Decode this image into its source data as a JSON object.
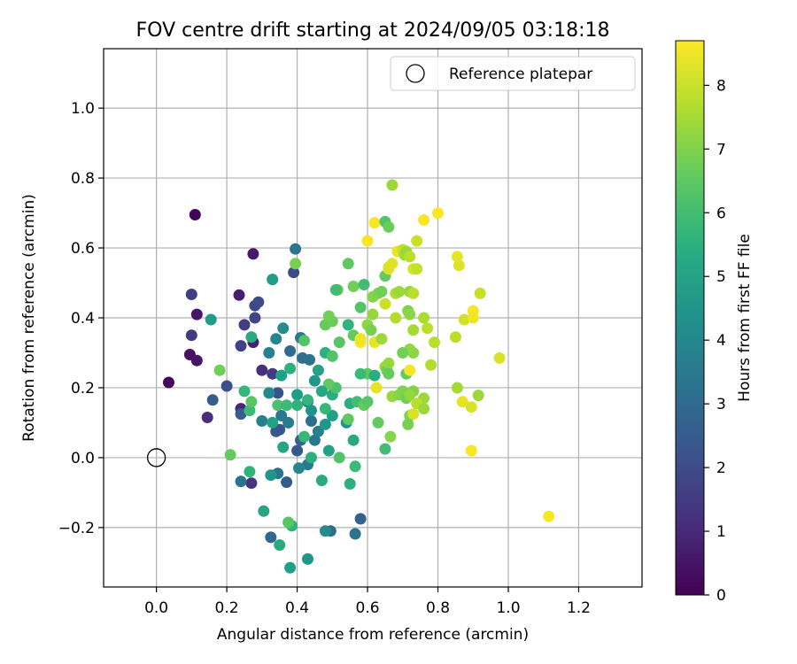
{
  "chart_data": {
    "type": "scatter",
    "title": "FOV centre drift starting at 2024/09/05 03:18:18",
    "xlabel": "Angular distance from reference (arcmin)",
    "ylabel": "Rotation from reference (arcmin)",
    "xlim": [
      -0.15,
      1.38
    ],
    "ylim": [
      -0.37,
      1.17
    ],
    "xticks": [
      0.0,
      0.2,
      0.4,
      0.6,
      0.8,
      1.0,
      1.2
    ],
    "xtick_labels": [
      "0.0",
      "0.2",
      "0.4",
      "0.6",
      "0.8",
      "1.0",
      "1.2"
    ],
    "yticks": [
      -0.2,
      0.0,
      0.2,
      0.4,
      0.6,
      0.8,
      1.0
    ],
    "ytick_labels": [
      "−0.2",
      "0.0",
      "0.2",
      "0.4",
      "0.6",
      "0.8",
      "1.0"
    ],
    "grid": true,
    "legend": {
      "placement": "top-right",
      "entries": [
        "Reference platepar"
      ]
    },
    "reference_point": {
      "x": 0.0,
      "y": 0.0
    },
    "colorbar": {
      "label": "Hours from first FF file",
      "min": 0,
      "max": 8.7,
      "ticks": [
        0,
        1,
        2,
        3,
        4,
        5,
        6,
        7,
        8
      ],
      "tick_labels": [
        "0",
        "1",
        "2",
        "3",
        "4",
        "5",
        "6",
        "7",
        "8"
      ],
      "colormap": "viridis"
    },
    "points": [
      [
        0.11,
        0.695,
        0.1
      ],
      [
        0.035,
        0.215,
        0.2
      ],
      [
        0.095,
        0.295,
        0.4
      ],
      [
        0.115,
        0.41,
        0.5
      ],
      [
        0.115,
        0.278,
        0.5
      ],
      [
        0.1,
        0.35,
        1.5
      ],
      [
        0.1,
        0.467,
        1.6
      ],
      [
        0.145,
        0.115,
        1.2
      ],
      [
        0.275,
        0.583,
        0.6
      ],
      [
        0.235,
        0.465,
        0.7
      ],
      [
        0.275,
        0.33,
        0.8
      ],
      [
        0.24,
        0.14,
        0.9
      ],
      [
        0.25,
        0.38,
        1.6
      ],
      [
        0.24,
        0.32,
        1.7
      ],
      [
        0.28,
        0.4,
        1.8
      ],
      [
        0.28,
        0.435,
        1.9
      ],
      [
        0.29,
        0.445,
        2.0
      ],
      [
        0.2,
        0.205,
        2.1
      ],
      [
        0.16,
        0.165,
        2.5
      ],
      [
        0.24,
        0.125,
        2.6
      ],
      [
        0.27,
        -0.073,
        1.3
      ],
      [
        0.24,
        -0.068,
        3.3
      ],
      [
        0.39,
        0.53,
        2.0
      ],
      [
        0.395,
        0.597,
        3.4
      ],
      [
        0.3,
        0.25,
        1.2
      ],
      [
        0.33,
        0.24,
        1.5
      ],
      [
        0.345,
        0.185,
        2.2
      ],
      [
        0.35,
        0.08,
        2.4
      ],
      [
        0.34,
        0.075,
        2.3
      ],
      [
        0.38,
        0.305,
        3.0
      ],
      [
        0.415,
        0.285,
        3.2
      ],
      [
        0.435,
        0.28,
        3.3
      ],
      [
        0.41,
        0.343,
        3.5
      ],
      [
        0.32,
        0.3,
        3.9
      ],
      [
        0.34,
        0.34,
        4.0
      ],
      [
        0.36,
        0.37,
        4.2
      ],
      [
        0.3,
        0.105,
        3.8
      ],
      [
        0.32,
        0.185,
        4.1
      ],
      [
        0.355,
        0.12,
        3.5
      ],
      [
        0.375,
        0.1,
        3.6
      ],
      [
        0.4,
        0.02,
        2.4
      ],
      [
        0.41,
        0.05,
        2.8
      ],
      [
        0.43,
        0.16,
        3.0
      ],
      [
        0.44,
        0.105,
        3.1
      ],
      [
        0.45,
        0.05,
        3.4
      ],
      [
        0.46,
        0.075,
        3.8
      ],
      [
        0.44,
        0.135,
        4.4
      ],
      [
        0.45,
        0.22,
        4.6
      ],
      [
        0.4,
        0.18,
        4.8
      ],
      [
        0.46,
        0.25,
        5.0
      ],
      [
        0.355,
        0.235,
        4.9
      ],
      [
        0.38,
        0.255,
        5.5
      ],
      [
        0.33,
        0.51,
        4.8
      ],
      [
        0.37,
        -0.07,
        2.5
      ],
      [
        0.345,
        -0.045,
        3.3
      ],
      [
        0.43,
        -0.02,
        3.5
      ],
      [
        0.405,
        -0.03,
        4.0
      ],
      [
        0.325,
        -0.05,
        4.5
      ],
      [
        0.495,
        -0.21,
        3.1
      ],
      [
        0.48,
        -0.21,
        4.2
      ],
      [
        0.325,
        -0.228,
        2.9
      ],
      [
        0.565,
        -0.218,
        3.3
      ],
      [
        0.58,
        -0.175,
        2.7
      ],
      [
        0.38,
        -0.315,
        4.9
      ],
      [
        0.43,
        -0.29,
        4.6
      ],
      [
        0.35,
        -0.25,
        5.3
      ],
      [
        0.385,
        -0.195,
        5.6
      ],
      [
        0.375,
        -0.185,
        6.4
      ],
      [
        0.305,
        -0.153,
        5.1
      ],
      [
        0.265,
        -0.04,
        5.6
      ],
      [
        0.21,
        0.008,
        6.6
      ],
      [
        0.25,
        0.19,
        5.8
      ],
      [
        0.265,
        0.135,
        5.9
      ],
      [
        0.27,
        0.16,
        6.4
      ],
      [
        0.18,
        0.25,
        6.8
      ],
      [
        0.155,
        0.395,
        4.8
      ],
      [
        0.27,
        0.345,
        5.3
      ],
      [
        0.345,
        0.15,
        6.2
      ],
      [
        0.395,
        0.555,
        6.9
      ],
      [
        0.42,
        0.335,
        6.3
      ],
      [
        0.5,
        0.12,
        4.9
      ],
      [
        0.48,
        0.095,
        4.6
      ],
      [
        0.49,
        0.02,
        5.0
      ],
      [
        0.52,
        0.0,
        6.3
      ],
      [
        0.47,
        -0.065,
        5.3
      ],
      [
        0.55,
        -0.075,
        5.5
      ],
      [
        0.565,
        -0.025,
        5.9
      ],
      [
        0.56,
        0.05,
        5.3
      ],
      [
        0.54,
        0.1,
        4.5
      ],
      [
        0.545,
        0.11,
        6.5
      ],
      [
        0.48,
        0.14,
        5.8
      ],
      [
        0.5,
        0.18,
        5.4
      ],
      [
        0.51,
        0.2,
        6.2
      ],
      [
        0.49,
        0.21,
        6.5
      ],
      [
        0.48,
        0.3,
        5.5
      ],
      [
        0.5,
        0.29,
        6.3
      ],
      [
        0.52,
        0.33,
        6.4
      ],
      [
        0.48,
        0.38,
        6.6
      ],
      [
        0.5,
        0.39,
        6.7
      ],
      [
        0.49,
        0.405,
        6.8
      ],
      [
        0.515,
        0.48,
        6.8
      ],
      [
        0.51,
        0.48,
        6.0
      ],
      [
        0.545,
        0.555,
        6.5
      ],
      [
        0.545,
        0.38,
        5.6
      ],
      [
        0.56,
        0.49,
        6.8
      ],
      [
        0.56,
        0.35,
        6.6
      ],
      [
        0.55,
        0.155,
        5.4
      ],
      [
        0.57,
        0.16,
        6.0
      ],
      [
        0.59,
        0.15,
        6.6
      ],
      [
        0.6,
        0.16,
        6.4
      ],
      [
        0.58,
        0.43,
        6.3
      ],
      [
        0.59,
        0.495,
        6.0
      ],
      [
        0.6,
        0.38,
        7.2
      ],
      [
        0.6,
        0.24,
        6.5
      ],
      [
        0.61,
        0.365,
        6.9
      ],
      [
        0.58,
        0.33,
        8.6
      ],
      [
        0.58,
        0.34,
        8.3
      ],
      [
        0.615,
        0.41,
        7.3
      ],
      [
        0.615,
        0.46,
        7.1
      ],
      [
        0.62,
        0.235,
        5.4
      ],
      [
        0.62,
        0.33,
        8.4
      ],
      [
        0.625,
        0.2,
        8.4
      ],
      [
        0.63,
        0.47,
        7.0
      ],
      [
        0.64,
        0.475,
        6.8
      ],
      [
        0.6,
        0.62,
        8.6
      ],
      [
        0.62,
        0.672,
        8.6
      ],
      [
        0.65,
        0.675,
        6.3
      ],
      [
        0.66,
        0.66,
        6.7
      ],
      [
        0.67,
        0.78,
        7.4
      ],
      [
        0.65,
        0.52,
        6.6
      ],
      [
        0.66,
        0.54,
        8.4
      ],
      [
        0.66,
        0.545,
        8.2
      ],
      [
        0.67,
        0.555,
        8.3
      ],
      [
        0.685,
        0.59,
        8.4
      ],
      [
        0.7,
        0.595,
        8.0
      ],
      [
        0.705,
        0.58,
        7.5
      ],
      [
        0.71,
        0.59,
        7.4
      ],
      [
        0.72,
        0.575,
        7.8
      ],
      [
        0.73,
        0.54,
        8.2
      ],
      [
        0.74,
        0.62,
        8.0
      ],
      [
        0.68,
        0.47,
        7.6
      ],
      [
        0.69,
        0.475,
        7.4
      ],
      [
        0.72,
        0.475,
        7.3
      ],
      [
        0.73,
        0.47,
        7.8
      ],
      [
        0.74,
        0.54,
        7.9
      ],
      [
        0.65,
        0.44,
        8.0
      ],
      [
        0.68,
        0.4,
        7.7
      ],
      [
        0.715,
        0.42,
        7.0
      ],
      [
        0.72,
        0.41,
        7.2
      ],
      [
        0.73,
        0.365,
        7.5
      ],
      [
        0.76,
        0.4,
        7.6
      ],
      [
        0.77,
        0.37,
        7.8
      ],
      [
        0.79,
        0.33,
        7.8
      ],
      [
        0.72,
        0.31,
        7.3
      ],
      [
        0.73,
        0.3,
        7.2
      ],
      [
        0.64,
        0.34,
        7.4
      ],
      [
        0.65,
        0.26,
        7.4
      ],
      [
        0.655,
        0.25,
        6.8
      ],
      [
        0.66,
        0.27,
        7.3
      ],
      [
        0.66,
        0.24,
        6.6
      ],
      [
        0.7,
        0.3,
        6.8
      ],
      [
        0.71,
        0.24,
        6.6
      ],
      [
        0.72,
        0.25,
        8.6
      ],
      [
        0.73,
        0.19,
        7.0
      ],
      [
        0.76,
        0.17,
        7.4
      ],
      [
        0.74,
        0.155,
        7.8
      ],
      [
        0.76,
        0.14,
        7.4
      ],
      [
        0.72,
        0.12,
        7.0
      ],
      [
        0.73,
        0.125,
        8.2
      ],
      [
        0.715,
        0.095,
        6.9
      ],
      [
        0.67,
        0.175,
        7.3
      ],
      [
        0.69,
        0.18,
        7.1
      ],
      [
        0.7,
        0.19,
        7.0
      ],
      [
        0.71,
        0.17,
        6.8
      ],
      [
        0.72,
        0.18,
        7.3
      ],
      [
        0.63,
        0.1,
        6.6
      ],
      [
        0.665,
        0.06,
        7.1
      ],
      [
        0.65,
        0.025,
        6.0
      ],
      [
        0.78,
        0.265,
        7.7
      ],
      [
        0.8,
        0.7,
        8.7
      ],
      [
        0.76,
        0.68,
        8.6
      ],
      [
        0.855,
        0.575,
        8.4
      ],
      [
        0.86,
        0.55,
        8.3
      ],
      [
        0.875,
        0.395,
        8.1
      ],
      [
        0.9,
        0.42,
        8.6
      ],
      [
        0.9,
        0.4,
        8.5
      ],
      [
        0.92,
        0.47,
        8.0
      ],
      [
        0.85,
        0.345,
        7.8
      ],
      [
        0.855,
        0.2,
        7.5
      ],
      [
        0.87,
        0.16,
        8.4
      ],
      [
        0.895,
        0.145,
        8.2
      ],
      [
        0.915,
        0.178,
        7.4
      ],
      [
        0.895,
        0.02,
        8.6
      ],
      [
        0.975,
        0.285,
        8.2
      ],
      [
        1.115,
        -0.168,
        8.6
      ],
      [
        0.58,
        0.34,
        8.5
      ],
      [
        0.4,
        0.15,
        5.6
      ],
      [
        0.42,
        0.06,
        5.8
      ],
      [
        0.43,
        0.165,
        5.7
      ],
      [
        0.44,
        0.0,
        5.5
      ],
      [
        0.37,
        0.15,
        5.9
      ],
      [
        0.36,
        0.03,
        5.1
      ],
      [
        0.33,
        0.1,
        5.0
      ],
      [
        0.47,
        0.19,
        5.2
      ],
      [
        0.58,
        0.24,
        5.9
      ]
    ]
  }
}
